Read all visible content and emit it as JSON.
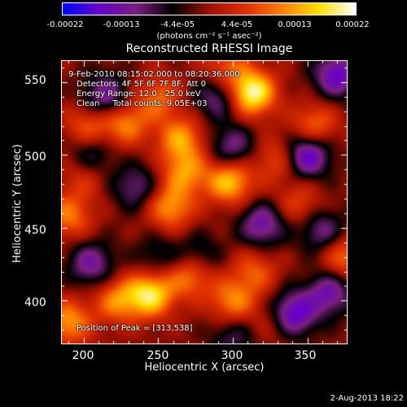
{
  "colorbar": {
    "tick_labels": [
      "-0.00022",
      "-0.00013",
      "-4.4e-05",
      "4.4e-05",
      "0.00013",
      "0.00022"
    ],
    "units": "(photons cm⁻² s⁻¹ asec⁻²)",
    "range": [
      -0.00022,
      0.00022
    ],
    "colors": [
      "#0000ff",
      "#6a00c8",
      "#7a2080",
      "#000000",
      "#a01000",
      "#e03000",
      "#ff8000",
      "#ffe000",
      "#ffffff"
    ]
  },
  "overlay": {
    "line1": "9-Feb-2010 08:15:02.000 to 08:20:36.000",
    "line2": "Detectors: 4F 5F 6F 7F 8F, Att 0",
    "line3": "Energy Range: 12.0 - 25.0 keV",
    "line4": "Clean     Total counts: 9.05E+03",
    "peak": "Position of Peak = [313,538]"
  },
  "footer": {
    "date": "2-Aug-2013 18:22"
  },
  "chart_data": {
    "type": "heatmap",
    "title": "Reconstructed RHESSI Image",
    "xlabel": "Heliocentric X (arcsec)",
    "ylabel": "Heliocentric Y (arcsec)",
    "xlim": [
      185,
      377
    ],
    "ylim": [
      370,
      565
    ],
    "x_ticks": [
      200,
      250,
      300,
      350
    ],
    "y_ticks": [
      400,
      450,
      500,
      550
    ],
    "blobs": [
      {
        "x": 313,
        "y": 543,
        "v": 1.0
      },
      {
        "x": 250,
        "y": 540,
        "v": 0.45
      },
      {
        "x": 228,
        "y": 522,
        "v": 0.55
      },
      {
        "x": 265,
        "y": 511,
        "v": 0.6
      },
      {
        "x": 268,
        "y": 488,
        "v": 0.55
      },
      {
        "x": 298,
        "y": 482,
        "v": 0.75
      },
      {
        "x": 258,
        "y": 464,
        "v": 0.6
      },
      {
        "x": 203,
        "y": 520,
        "v": 0.45
      },
      {
        "x": 355,
        "y": 520,
        "v": 0.5
      },
      {
        "x": 330,
        "y": 497,
        "v": 0.4
      },
      {
        "x": 190,
        "y": 458,
        "v": 0.5
      },
      {
        "x": 245,
        "y": 404,
        "v": 0.85
      },
      {
        "x": 223,
        "y": 400,
        "v": 0.55
      },
      {
        "x": 272,
        "y": 418,
        "v": 0.6
      },
      {
        "x": 300,
        "y": 399,
        "v": 0.55
      },
      {
        "x": 315,
        "y": 420,
        "v": 0.4
      },
      {
        "x": 190,
        "y": 385,
        "v": 0.6
      },
      {
        "x": 375,
        "y": 430,
        "v": 0.5
      },
      {
        "x": 345,
        "y": 466,
        "v": 0.35
      },
      {
        "x": 330,
        "y": 385,
        "v": 0.3
      },
      {
        "x": 295,
        "y": 560,
        "v": 0.4
      },
      {
        "x": 200,
        "y": 485,
        "v": 0.3
      },
      {
        "x": 350,
        "y": 500,
        "v": -0.8
      },
      {
        "x": 340,
        "y": 390,
        "v": -0.85
      },
      {
        "x": 215,
        "y": 540,
        "v": -0.6
      },
      {
        "x": 205,
        "y": 425,
        "v": -0.55
      },
      {
        "x": 290,
        "y": 540,
        "v": -0.5
      },
      {
        "x": 320,
        "y": 452,
        "v": -0.6
      },
      {
        "x": 360,
        "y": 448,
        "v": -0.5
      },
      {
        "x": 235,
        "y": 478,
        "v": -0.45
      },
      {
        "x": 370,
        "y": 555,
        "v": -0.7
      },
      {
        "x": 277,
        "y": 430,
        "v": -0.4
      },
      {
        "x": 300,
        "y": 505,
        "v": -0.5
      },
      {
        "x": 205,
        "y": 500,
        "v": -0.4
      },
      {
        "x": 250,
        "y": 430,
        "v": -0.3
      },
      {
        "x": 365,
        "y": 405,
        "v": -0.6
      },
      {
        "x": 300,
        "y": 375,
        "v": -0.35
      }
    ]
  }
}
